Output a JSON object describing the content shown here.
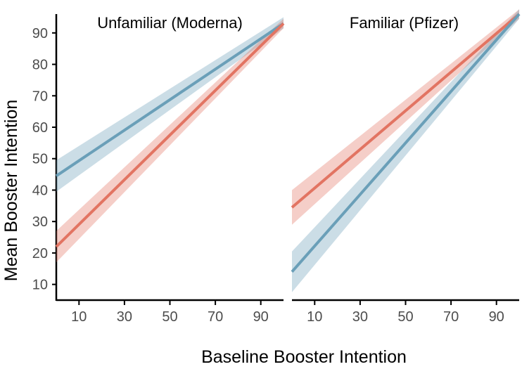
{
  "chart_data": {
    "type": "line",
    "ylabel": "Mean Booster Intention",
    "xlabel": "Baseline Booster Intention",
    "xlim": [
      0,
      100
    ],
    "ylim": [
      5,
      96
    ],
    "xticks": [
      10,
      30,
      50,
      70,
      90
    ],
    "yticks": [
      10,
      20,
      30,
      40,
      50,
      60,
      70,
      80,
      90
    ],
    "grid": false,
    "colors": {
      "blue": "#6a9fb8",
      "red": "#e27462"
    },
    "panels": [
      {
        "title": "Unfamiliar (Moderna)",
        "series": [
          {
            "color": "blue",
            "x": [
              0,
              100
            ],
            "y": [
              44.5,
              93
            ],
            "ci_low": [
              39.5,
              91.5
            ],
            "ci_high": [
              49.5,
              95
            ]
          },
          {
            "color": "red",
            "x": [
              0,
              100
            ],
            "y": [
              22,
              93
            ],
            "ci_low": [
              17,
              91.5
            ],
            "ci_high": [
              27,
              94.5
            ]
          }
        ]
      },
      {
        "title": "Familiar (Pfizer)",
        "series": [
          {
            "color": "red",
            "x": [
              0,
              100
            ],
            "y": [
              34.5,
              96
            ],
            "ci_low": [
              29,
              94.5
            ],
            "ci_high": [
              40,
              97.5
            ]
          },
          {
            "color": "blue",
            "x": [
              0,
              100
            ],
            "y": [
              14,
              96
            ],
            "ci_low": [
              7.5,
              94.5
            ],
            "ci_high": [
              20.5,
              97.5
            ]
          }
        ]
      }
    ]
  }
}
